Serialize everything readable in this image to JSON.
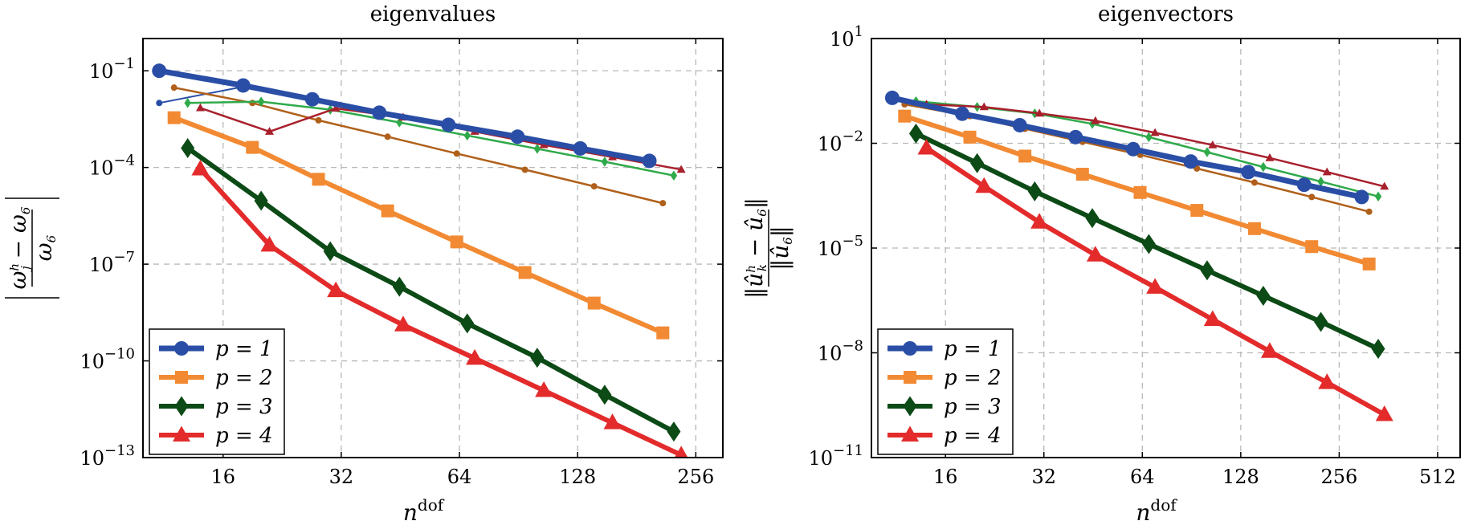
{
  "chart_data": [
    {
      "type": "line",
      "title": "eigenvalues",
      "xlabel": "n",
      "xlabel_sup": "dof",
      "ylabel_numerator": "ω",
      "ylabel_sup": "h",
      "ylabel_sub": "j",
      "ylabel_minus": "− ω",
      "ylabel_minus_sub": "6",
      "ylabel_denominator": "ω",
      "ylabel_denominator_sub": "6",
      "x_scale": "log2",
      "y_scale": "log10",
      "xlim": [
        10,
        300
      ],
      "ylim": [
        1e-13,
        1
      ],
      "x_ticks": [
        16,
        32,
        64,
        128,
        256
      ],
      "x_tick_labels": [
        "16",
        "32",
        "64",
        "128",
        "256"
      ],
      "y_ticks": [
        1e-13,
        1e-10,
        1e-07,
        0.0001,
        0.1
      ],
      "y_tick_labels": [
        {
          "base": "10",
          "exp": "−13"
        },
        {
          "base": "10",
          "exp": "−10"
        },
        {
          "base": "10",
          "exp": "−7"
        },
        {
          "base": "10",
          "exp": "−4"
        },
        {
          "base": "10",
          "exp": "−1"
        }
      ],
      "grid": true,
      "legend_position": "bottom-left",
      "series": [
        {
          "name": "p = 1",
          "legend": true,
          "color": "#2a4ea6",
          "marker": "circle",
          "width": 7,
          "msize": 9,
          "x": [
            11,
            18,
            27,
            40,
            60,
            90,
            130,
            195
          ],
          "y": [
            0.1,
            0.035,
            0.013,
            0.005,
            0.0021,
            0.0009,
            0.00039,
            0.00016
          ]
        },
        {
          "name": "p = 2",
          "legend": true,
          "color": "#f28a33",
          "marker": "square",
          "width": 6,
          "msize": 8,
          "x": [
            12,
            19,
            28,
            42,
            63,
            94,
            141,
            211
          ],
          "y": [
            0.0035,
            0.00042,
            4.3e-05,
            4.5e-06,
            4.9e-07,
            5.5e-08,
            6.2e-09,
            7.4e-10
          ]
        },
        {
          "name": "p = 3",
          "legend": true,
          "color": "#0c4a16",
          "marker": "diamond",
          "width": 6,
          "msize": 10,
          "x": [
            13,
            20,
            30,
            45,
            67,
            101,
            150,
            225
          ],
          "y": [
            0.0004,
            9.3e-06,
            2.5e-07,
            2e-08,
            1.45e-09,
            1.25e-10,
            8.9e-12,
            6.4e-13
          ]
        },
        {
          "name": "p = 4",
          "legend": true,
          "color": "#e32b2b",
          "marker": "triangle",
          "width": 6,
          "msize": 10,
          "x": [
            14,
            21,
            31,
            46,
            70,
            105,
            157,
            235
          ],
          "y": [
            9e-05,
            3.9e-07,
            1.5e-08,
            1.3e-09,
            1.2e-10,
            1.2e-11,
            1.2e-12,
            1.2e-13
          ]
        },
        {
          "name": "",
          "legend": false,
          "color": "#2a4ea6",
          "marker": "circle",
          "width": 2,
          "msize": 4,
          "x": [
            11,
            18,
            27,
            40,
            60,
            90,
            130,
            195
          ],
          "y": [
            0.01,
            0.032,
            0.014,
            0.0048,
            0.002,
            0.00085,
            0.00036,
            0.00015
          ]
        },
        {
          "name": "",
          "legend": false,
          "color": "#b0601a",
          "marker": "circle",
          "width": 2.5,
          "msize": 4,
          "x": [
            12,
            19,
            28,
            42,
            63,
            94,
            141,
            211
          ],
          "y": [
            0.03,
            0.01,
            0.0029,
            0.0009,
            0.00027,
            8.5e-05,
            2.6e-05,
            7.8e-06
          ]
        },
        {
          "name": "",
          "legend": false,
          "color": "#2eaa4a",
          "marker": "diamond",
          "width": 2.5,
          "msize": 5,
          "x": [
            13,
            20,
            30,
            45,
            67,
            101,
            150,
            225
          ],
          "y": [
            0.01,
            0.011,
            0.0062,
            0.0025,
            0.00098,
            0.00038,
            0.00015,
            5.6e-05
          ]
        },
        {
          "name": "",
          "legend": false,
          "color": "#a8202c",
          "marker": "triangle",
          "width": 2.5,
          "msize": 5,
          "x": [
            14,
            21,
            31,
            46,
            70,
            105,
            157,
            235
          ],
          "y": [
            0.007,
            0.0013,
            0.0068,
            0.0036,
            0.0013,
            0.0005,
            0.00021,
            8.6e-05
          ]
        }
      ]
    },
    {
      "type": "line",
      "title": "eigenvectors",
      "xlabel": "n",
      "xlabel_sup": "dof",
      "ylabel_numerator": "‖û",
      "ylabel_sup": "h",
      "ylabel_sub": "k",
      "ylabel_minus": "− û",
      "ylabel_minus_sub": "6",
      "ylabel_minus_end": "‖",
      "ylabel_denominator": "‖û",
      "ylabel_denominator_sub": "6",
      "ylabel_denominator_end": "‖",
      "x_scale": "log2",
      "y_scale": "log10",
      "xlim": [
        9.5,
        600
      ],
      "ylim": [
        1e-11,
        10
      ],
      "x_ticks": [
        16,
        32,
        64,
        128,
        256,
        512
      ],
      "x_tick_labels": [
        "16",
        "32",
        "64",
        "128",
        "256",
        "512"
      ],
      "y_ticks": [
        1e-11,
        1e-08,
        1e-05,
        0.01,
        10
      ],
      "y_tick_labels": [
        {
          "base": "10",
          "exp": "−11"
        },
        {
          "base": "10",
          "exp": "−8"
        },
        {
          "base": "10",
          "exp": "−5"
        },
        {
          "base": "10",
          "exp": "−2"
        },
        {
          "base": "10",
          "exp": "1"
        }
      ],
      "grid": true,
      "legend_position": "bottom-left",
      "series": [
        {
          "name": "p = 1",
          "legend": true,
          "color": "#2a4ea6",
          "marker": "circle",
          "width": 7,
          "msize": 9,
          "x": [
            11,
            18,
            27,
            40,
            60,
            90,
            135,
            200,
            300
          ],
          "y": [
            0.2,
            0.07,
            0.033,
            0.015,
            0.0068,
            0.003,
            0.0015,
            0.00065,
            0.00029
          ]
        },
        {
          "name": "p = 2",
          "legend": true,
          "color": "#f28a33",
          "marker": "square",
          "width": 6,
          "msize": 8,
          "x": [
            12,
            19,
            28,
            42,
            63,
            94,
            141,
            211,
            316
          ],
          "y": [
            0.06,
            0.015,
            0.0043,
            0.0013,
            0.00039,
            0.00012,
            3.6e-05,
            1.1e-05,
            3.5e-06
          ]
        },
        {
          "name": "p = 3",
          "legend": true,
          "color": "#0c4a16",
          "marker": "diamond",
          "width": 6,
          "msize": 10,
          "x": [
            13,
            20,
            30,
            45,
            67,
            101,
            150,
            225,
            337
          ],
          "y": [
            0.019,
            0.0027,
            0.00042,
            7.2e-05,
            1.3e-05,
            2.3e-06,
            4.3e-07,
            7.7e-08,
            1.3e-08
          ]
        },
        {
          "name": "p = 4",
          "legend": true,
          "color": "#e32b2b",
          "marker": "triangle",
          "width": 6,
          "msize": 10,
          "x": [
            14,
            21,
            31,
            46,
            70,
            105,
            157,
            235,
            352
          ],
          "y": [
            0.0073,
            0.00058,
            5.5e-05,
            6.3e-06,
            7.5e-07,
            9e-08,
            1.1e-08,
            1.4e-09,
            1.7e-10
          ]
        },
        {
          "name": "",
          "legend": false,
          "color": "#2a4ea6",
          "marker": "circle",
          "width": 2,
          "msize": 4,
          "x": [
            11,
            18,
            27,
            40,
            60,
            90,
            135,
            200,
            300
          ],
          "y": [
            0.19,
            0.068,
            0.031,
            0.014,
            0.0064,
            0.0029,
            0.0014,
            0.00063,
            0.00028
          ]
        },
        {
          "name": "",
          "legend": false,
          "color": "#b0601a",
          "marker": "circle",
          "width": 2.5,
          "msize": 4,
          "x": [
            12,
            19,
            28,
            42,
            63,
            94,
            141,
            211,
            316
          ],
          "y": [
            0.13,
            0.06,
            0.026,
            0.011,
            0.0047,
            0.0019,
            0.00075,
            0.00029,
            0.00011
          ]
        },
        {
          "name": "",
          "legend": false,
          "color": "#2eaa4a",
          "marker": "diamond",
          "width": 2.5,
          "msize": 5,
          "x": [
            13,
            20,
            30,
            45,
            67,
            101,
            150,
            225,
            337
          ],
          "y": [
            0.16,
            0.11,
            0.072,
            0.036,
            0.015,
            0.0056,
            0.0021,
            0.0008,
            0.0003
          ]
        },
        {
          "name": "",
          "legend": false,
          "color": "#a8202c",
          "marker": "triangle",
          "width": 2.5,
          "msize": 5,
          "x": [
            14,
            21,
            31,
            46,
            70,
            105,
            157,
            235,
            352
          ],
          "y": [
            0.13,
            0.11,
            0.072,
            0.044,
            0.02,
            0.0089,
            0.0038,
            0.0015,
            0.00058
          ]
        }
      ]
    }
  ]
}
